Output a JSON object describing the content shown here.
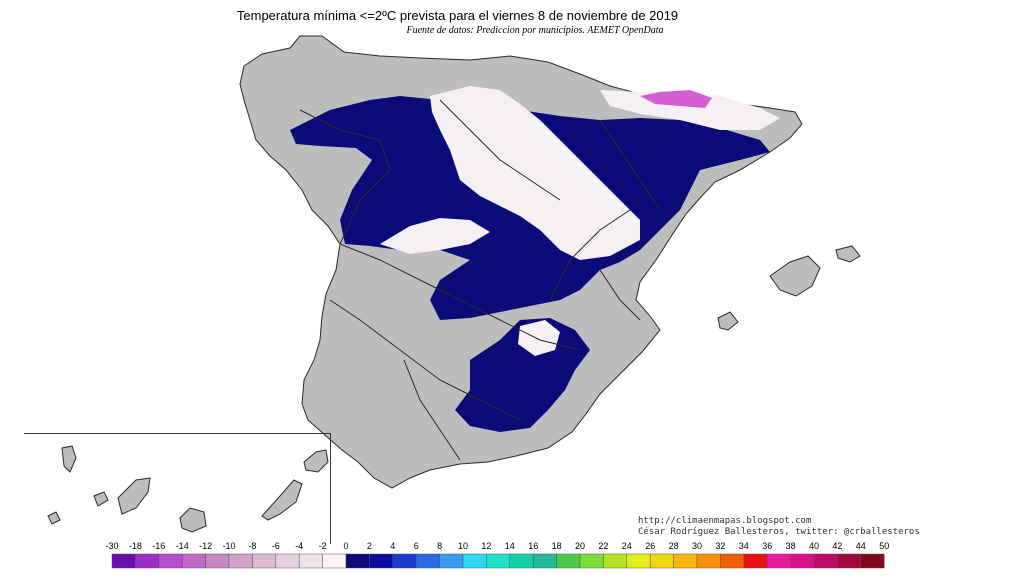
{
  "header": {
    "title": "Temperatura mínima <=2ºC prevista para el viernes 8 de noviembre de 2019",
    "subtitle": "Fuente de datos: Prediccion por municipios. AEMET OpenData"
  },
  "credits": {
    "url": "http://climaenmapas.blogspot.com",
    "author": "César Rodríguez Ballesteros, twitter: @crballesteros"
  },
  "colors": {
    "land": "#bdbdbd",
    "border": "#2a2a2a",
    "cold_zone": "#0a0a78",
    "snow_zone": "#f4f0f4",
    "very_cold": "#cc44cc"
  },
  "legend": {
    "labels": [
      "-30",
      "-18",
      "-16",
      "-14",
      "-12",
      "-10",
      "-8",
      "-6",
      "-4",
      "-2",
      "0",
      "2",
      "4",
      "6",
      "8",
      "10",
      "12",
      "14",
      "16",
      "18",
      "20",
      "22",
      "24",
      "26",
      "28",
      "30",
      "32",
      "34",
      "36",
      "38",
      "40",
      "42",
      "44",
      "50"
    ],
    "colors": [
      "#6a0dad",
      "#9b30c8",
      "#b54fd0",
      "#c26ac8",
      "#c887c0",
      "#d3a2c8",
      "#dcb9d0",
      "#e6d0dc",
      "#f0e4ea",
      "#faf6f8",
      "#0a0a78",
      "#0a0aa0",
      "#1a3ad0",
      "#2a6ae8",
      "#3a9aef",
      "#2fd8ef",
      "#1fe0c8",
      "#14d0a8",
      "#26b89a",
      "#4acb4a",
      "#7cdc3a",
      "#b4e428",
      "#e4ee18",
      "#f2d812",
      "#f6b80e",
      "#f8900a",
      "#f06006",
      "#e81010",
      "#e81ca0",
      "#d8108a",
      "#c00a6a",
      "#a0083a",
      "#800818"
    ]
  }
}
